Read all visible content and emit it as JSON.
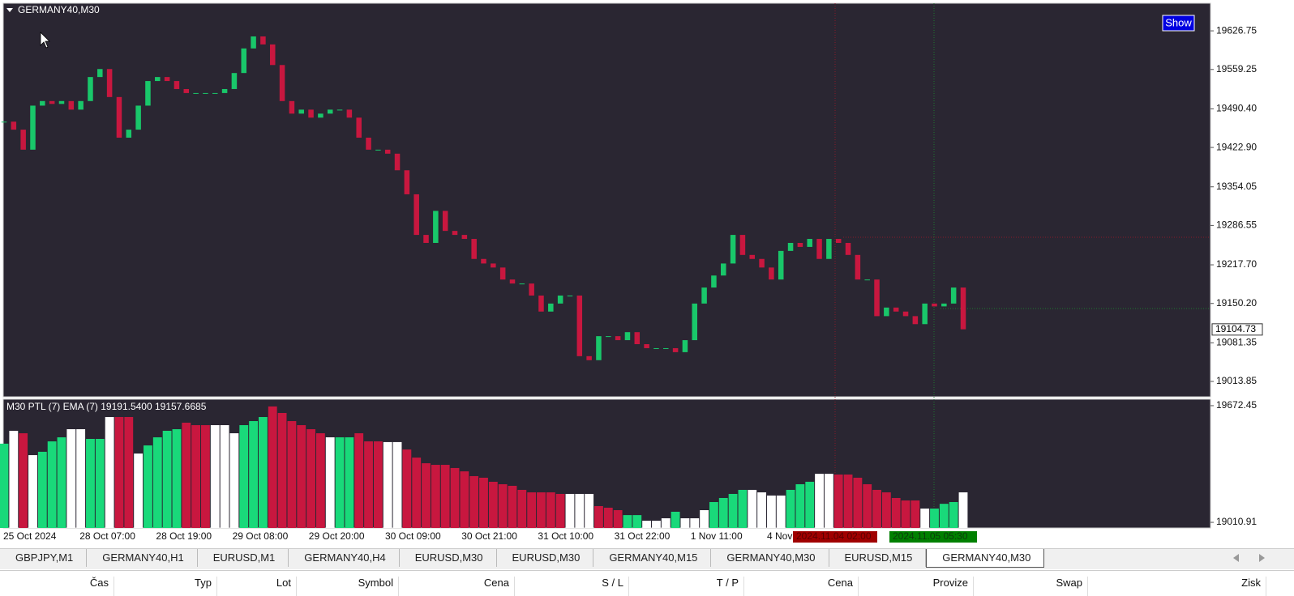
{
  "window": {
    "title": "GERMANY40,M30",
    "show_button": "Show"
  },
  "chart_data": [
    {
      "type": "candlestick",
      "values": [
        19468,
        19454,
        19419,
        19496,
        19504,
        19499,
        19504,
        19489,
        19504,
        19546,
        19560,
        19511,
        19440,
        19454,
        19496,
        19539,
        19546,
        19539,
        19525,
        19518,
        19518,
        19518,
        19518,
        19525,
        19553,
        19596,
        19617,
        19603,
        19567,
        19504,
        19482,
        19489,
        19475,
        19482,
        19489,
        19489,
        19475,
        19440,
        19419,
        19419,
        19412,
        19383,
        19341,
        19270,
        19256,
        19312,
        19277,
        19270,
        19263,
        19228,
        19220,
        19213,
        19192,
        19185,
        19185,
        19164,
        19136,
        19150,
        19164,
        19164,
        19058,
        19051,
        19093,
        19093,
        19086,
        19100,
        19079,
        19072,
        19072,
        19072,
        19065,
        19086,
        19150,
        19178,
        19199,
        19220,
        19270,
        19235,
        19228,
        19213,
        19192,
        19242,
        19256,
        19249,
        19263,
        19228,
        19263,
        19256,
        19235,
        19192,
        19192,
        19128,
        19143,
        19136,
        19128,
        19114,
        19150,
        19145,
        19150,
        19178,
        19105
      ],
      "up_color": "#19c76a",
      "down_color": "#c8173f",
      "ylim": [
        18987,
        19675
      ],
      "yticks": [
        19626.75,
        19559.25,
        {
          "value": 19490.4,
          "label": "19490.40"
        },
        {
          "value": 19422.9,
          "label": "19422.90"
        },
        19354.05,
        19286.55,
        {
          "value": 19217.7,
          "label": "19217.70"
        },
        {
          "value": 19150.2,
          "label": "19150.20"
        },
        19081.35,
        19013.85
      ],
      "last_price": 19104.73
    },
    {
      "type": "bar",
      "label": "M30 PTL (7) EMA (7) 19191.5400 19157.6685",
      "values": [
        19457,
        19530,
        19516,
        19392,
        19411,
        19470,
        19493,
        19539,
        19539,
        19484,
        19484,
        19608,
        19608,
        19608,
        19401,
        19447,
        19493,
        19530,
        19539,
        19576,
        19562,
        19562,
        19562,
        19562,
        19516,
        19562,
        19585,
        19608,
        19668,
        19631,
        19585,
        19562,
        19539,
        19516,
        19493,
        19493,
        19493,
        19516,
        19470,
        19470,
        19466,
        19466,
        19424,
        19378,
        19346,
        19337,
        19337,
        19319,
        19300,
        19273,
        19264,
        19241,
        19227,
        19218,
        19195,
        19181,
        19181,
        19181,
        19172,
        19172,
        19172,
        19172,
        19103,
        19094,
        19080,
        19052,
        19052,
        19020,
        19020,
        19034,
        19071,
        19034,
        19034,
        19080,
        19126,
        19149,
        19172,
        19195,
        19195,
        19181,
        19163,
        19163,
        19195,
        19227,
        19241,
        19286,
        19286,
        19282,
        19282,
        19264,
        19227,
        19195,
        19181,
        19149,
        19135,
        19135,
        19089,
        19089,
        19116,
        19126,
        19181
      ],
      "colors": [
        "#19d97a",
        "#ffffff",
        "#c8173f",
        "#ffffff",
        "#19d97a",
        "#19d97a",
        "#19d97a",
        "#ffffff",
        "#ffffff",
        "#19d97a",
        "#19d97a",
        "#ffffff",
        "#c8173f",
        "#c8173f",
        "#ffffff",
        "#19d97a",
        "#19d97a",
        "#19d97a",
        "#19d97a",
        "#c8173f",
        "#c8173f",
        "#c8173f",
        "#ffffff",
        "#ffffff",
        "#ffffff",
        "#19d97a",
        "#19d97a",
        "#19d97a",
        "#c8173f",
        "#c8173f",
        "#c8173f",
        "#c8173f",
        "#c8173f",
        "#c8173f",
        "#ffffff",
        "#19d97a",
        "#19d97a",
        "#c8173f",
        "#c8173f",
        "#c8173f",
        "#ffffff",
        "#ffffff",
        "#c8173f",
        "#c8173f",
        "#c8173f",
        "#c8173f",
        "#c8173f",
        "#c8173f",
        "#c8173f",
        "#c8173f",
        "#c8173f",
        "#c8173f",
        "#c8173f",
        "#c8173f",
        "#c8173f",
        "#c8173f",
        "#c8173f",
        "#c8173f",
        "#c8173f",
        "#ffffff",
        "#ffffff",
        "#ffffff",
        "#c8173f",
        "#c8173f",
        "#c8173f",
        "#19d97a",
        "#19d97a",
        "#ffffff",
        "#ffffff",
        "#ffffff",
        "#19d97a",
        "#ffffff",
        "#ffffff",
        "#ffffff",
        "#19d97a",
        "#19d97a",
        "#19d97a",
        "#19d97a",
        "#ffffff",
        "#ffffff",
        "#ffffff",
        "#ffffff",
        "#19d97a",
        "#19d97a",
        "#19d97a",
        "#ffffff",
        "#ffffff",
        "#c8173f",
        "#c8173f",
        "#c8173f",
        "#c8173f",
        "#c8173f",
        "#c8173f",
        "#c8173f",
        "#c8173f",
        "#c8173f",
        "#ffffff",
        "#19d97a",
        "#19d97a",
        "#19d97a",
        "#ffffff"
      ],
      "ylim": [
        18979,
        19709
      ],
      "yticks": [
        19672.45,
        19010.91
      ]
    }
  ],
  "time_axis": {
    "labels": [
      "25 Oct 2024",
      "28 Oct 07:00",
      "28 Oct 19:00",
      "29 Oct 08:00",
      "29 Oct 20:00",
      "30 Oct 09:00",
      "30 Oct 21:00",
      "31 Oct 10:00",
      "31 Oct 22:00",
      "1 Nov 11:00",
      "4 Nov"
    ],
    "cursor_labels": [
      "2024.11.04 02:00",
      "2024.11.05 05:30"
    ]
  },
  "tabs": [
    "GBPJPY,M1",
    "GERMANY40,H1",
    "EURUSD,M1",
    "GERMANY40,H4",
    "EURUSD,M30",
    "EURUSD,M30",
    "GERMANY40,M15",
    "GERMANY40,M30",
    "EURUSD,M15",
    "GERMANY40,M30"
  ],
  "columns": [
    "Čas",
    "Typ",
    "Lot",
    "Symbol",
    "Cena",
    "S / L",
    "T / P",
    "Cena",
    "Provize",
    "Swap",
    "Zisk"
  ]
}
